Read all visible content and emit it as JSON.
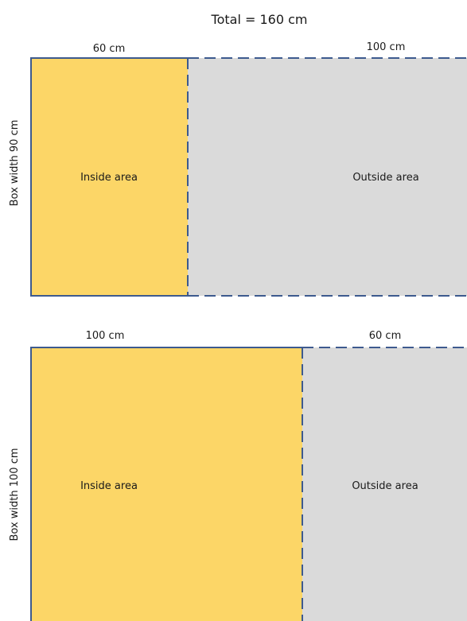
{
  "title": "Total = 160 cm",
  "colors": {
    "inside_fill": "#fcd667",
    "outside_fill": "#dadada",
    "border": "#3d5a8e"
  },
  "panels": [
    {
      "side_label": "Box width 90 cm",
      "inside": {
        "length_label": "60 cm",
        "area_label": "Inside area"
      },
      "outside": {
        "length_label": "100 cm",
        "area_label": "Outside area"
      }
    },
    {
      "side_label": "Box width 100 cm",
      "inside": {
        "length_label": "100 cm",
        "area_label": "Inside area"
      },
      "outside": {
        "length_label": "60 cm",
        "area_label": "Outside area"
      }
    }
  ]
}
